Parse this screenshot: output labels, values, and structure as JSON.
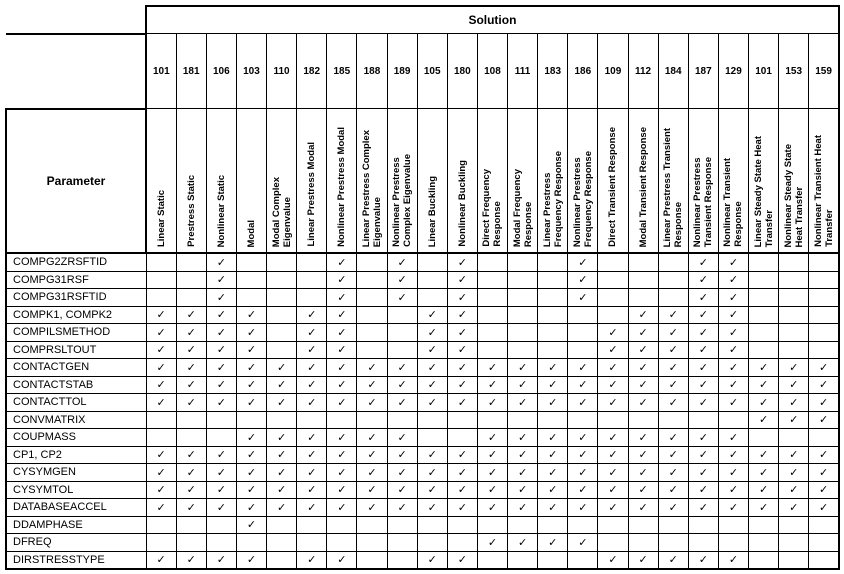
{
  "header": {
    "parameter_label": "Parameter",
    "solution_label": "Solution"
  },
  "check_glyph": "✓",
  "solutions": [
    {
      "number": "101",
      "name": "Linear Static"
    },
    {
      "number": "181",
      "name": "Prestress  Static"
    },
    {
      "number": "106",
      "name": "Nonlinear Static"
    },
    {
      "number": "103",
      "name": "Modal"
    },
    {
      "number": "110",
      "name": "Modal Complex\nEigenvalue"
    },
    {
      "number": "182",
      "name": "Linear Prestress Modal"
    },
    {
      "number": "185",
      "name": "Nonlinear Prestress Modal"
    },
    {
      "number": "188",
      "name": "Linear Prestress Complex\nEigenvalue"
    },
    {
      "number": "189",
      "name": "Nonlinear Prestress\nComplex Eigenvalue"
    },
    {
      "number": "105",
      "name": "Linear Buckling"
    },
    {
      "number": "180",
      "name": "Nonlinear Buckling"
    },
    {
      "number": "108",
      "name": "Direct Frequency\nResponse"
    },
    {
      "number": "111",
      "name": "Modal Frequency\nResponse"
    },
    {
      "number": "183",
      "name": "Linear Prestress\nFrequency Response"
    },
    {
      "number": "186",
      "name": "Nonlinear Prestress\nFrequency Response"
    },
    {
      "number": "109",
      "name": "Direct Transient Response"
    },
    {
      "number": "112",
      "name": "Modal Transient Response"
    },
    {
      "number": "184",
      "name": "Linear Prestress Transient\nResponse"
    },
    {
      "number": "187",
      "name": "Nonlinear Prestress\nTransient Response"
    },
    {
      "number": "129",
      "name": "Nonlinear Transient\nResponse"
    },
    {
      "number": "101",
      "name": "Linear  Steady State Heat\nTransfer"
    },
    {
      "number": "153",
      "name": "Nonlinear  Steady  State\nHeat Transfer"
    },
    {
      "number": "159",
      "name": "Nonlinear Transient Heat\nTransfer"
    }
  ],
  "rows": [
    {
      "parameter": "COMPG2ZRSFTID",
      "checks": [
        0,
        0,
        1,
        0,
        0,
        0,
        1,
        0,
        1,
        0,
        1,
        0,
        0,
        0,
        1,
        0,
        0,
        0,
        1,
        1,
        0,
        0,
        0
      ]
    },
    {
      "parameter": "COMPG31RSF",
      "checks": [
        0,
        0,
        1,
        0,
        0,
        0,
        1,
        0,
        1,
        0,
        1,
        0,
        0,
        0,
        1,
        0,
        0,
        0,
        1,
        1,
        0,
        0,
        0
      ]
    },
    {
      "parameter": "COMPG31RSFTID",
      "checks": [
        0,
        0,
        1,
        0,
        0,
        0,
        1,
        0,
        1,
        0,
        1,
        0,
        0,
        0,
        1,
        0,
        0,
        0,
        1,
        1,
        0,
        0,
        0
      ]
    },
    {
      "parameter": "COMPK1, COMPK2",
      "checks": [
        1,
        1,
        1,
        1,
        0,
        1,
        1,
        0,
        0,
        1,
        1,
        0,
        0,
        0,
        0,
        0,
        1,
        1,
        1,
        1,
        0,
        0,
        0
      ]
    },
    {
      "parameter": "COMPILSMETHOD",
      "checks": [
        1,
        1,
        1,
        1,
        0,
        1,
        1,
        0,
        0,
        1,
        1,
        0,
        0,
        0,
        0,
        1,
        1,
        1,
        1,
        1,
        0,
        0,
        0
      ]
    },
    {
      "parameter": "COMPRSLTOUT",
      "checks": [
        1,
        1,
        1,
        1,
        0,
        1,
        1,
        0,
        0,
        1,
        1,
        0,
        0,
        0,
        0,
        1,
        1,
        1,
        1,
        1,
        0,
        0,
        0
      ]
    },
    {
      "parameter": "CONTACTGEN",
      "checks": [
        1,
        1,
        1,
        1,
        1,
        1,
        1,
        1,
        1,
        1,
        1,
        1,
        1,
        1,
        1,
        1,
        1,
        1,
        1,
        1,
        1,
        1,
        1
      ]
    },
    {
      "parameter": "CONTACTSTAB",
      "checks": [
        1,
        1,
        1,
        1,
        1,
        1,
        1,
        1,
        1,
        1,
        1,
        1,
        1,
        1,
        1,
        1,
        1,
        1,
        1,
        1,
        1,
        1,
        1
      ]
    },
    {
      "parameter": "CONTACTTOL",
      "checks": [
        1,
        1,
        1,
        1,
        1,
        1,
        1,
        1,
        1,
        1,
        1,
        1,
        1,
        1,
        1,
        1,
        1,
        1,
        1,
        1,
        1,
        1,
        1
      ]
    },
    {
      "parameter": "CONVMATRIX",
      "checks": [
        0,
        0,
        0,
        0,
        0,
        0,
        0,
        0,
        0,
        0,
        0,
        0,
        0,
        0,
        0,
        0,
        0,
        0,
        0,
        0,
        1,
        1,
        1
      ]
    },
    {
      "parameter": "COUPMASS",
      "checks": [
        0,
        0,
        0,
        1,
        1,
        1,
        1,
        1,
        1,
        0,
        0,
        1,
        1,
        1,
        1,
        1,
        1,
        1,
        1,
        1,
        0,
        0,
        0
      ]
    },
    {
      "parameter": "CP1, CP2",
      "checks": [
        1,
        1,
        1,
        1,
        1,
        1,
        1,
        1,
        1,
        1,
        1,
        1,
        1,
        1,
        1,
        1,
        1,
        1,
        1,
        1,
        1,
        1,
        1
      ]
    },
    {
      "parameter": "CYSYMGEN",
      "checks": [
        1,
        1,
        1,
        1,
        1,
        1,
        1,
        1,
        1,
        1,
        1,
        1,
        1,
        1,
        1,
        1,
        1,
        1,
        1,
        1,
        1,
        1,
        1
      ]
    },
    {
      "parameter": "CYSYMTOL",
      "checks": [
        1,
        1,
        1,
        1,
        1,
        1,
        1,
        1,
        1,
        1,
        1,
        1,
        1,
        1,
        1,
        1,
        1,
        1,
        1,
        1,
        1,
        1,
        1
      ]
    },
    {
      "parameter": "DATABASEACCEL",
      "checks": [
        1,
        1,
        1,
        1,
        1,
        1,
        1,
        1,
        1,
        1,
        1,
        1,
        1,
        1,
        1,
        1,
        1,
        1,
        1,
        1,
        1,
        1,
        1
      ]
    },
    {
      "parameter": "DDAMPHASE",
      "checks": [
        0,
        0,
        0,
        1,
        0,
        0,
        0,
        0,
        0,
        0,
        0,
        0,
        0,
        0,
        0,
        0,
        0,
        0,
        0,
        0,
        0,
        0,
        0
      ]
    },
    {
      "parameter": "DFREQ",
      "checks": [
        0,
        0,
        0,
        0,
        0,
        0,
        0,
        0,
        0,
        0,
        0,
        1,
        1,
        1,
        1,
        0,
        0,
        0,
        0,
        0,
        0,
        0,
        0
      ]
    },
    {
      "parameter": "DIRSTRESSTYPE",
      "checks": [
        1,
        1,
        1,
        1,
        0,
        1,
        1,
        0,
        0,
        1,
        1,
        0,
        0,
        0,
        0,
        1,
        1,
        1,
        1,
        1,
        0,
        0,
        0
      ]
    }
  ]
}
